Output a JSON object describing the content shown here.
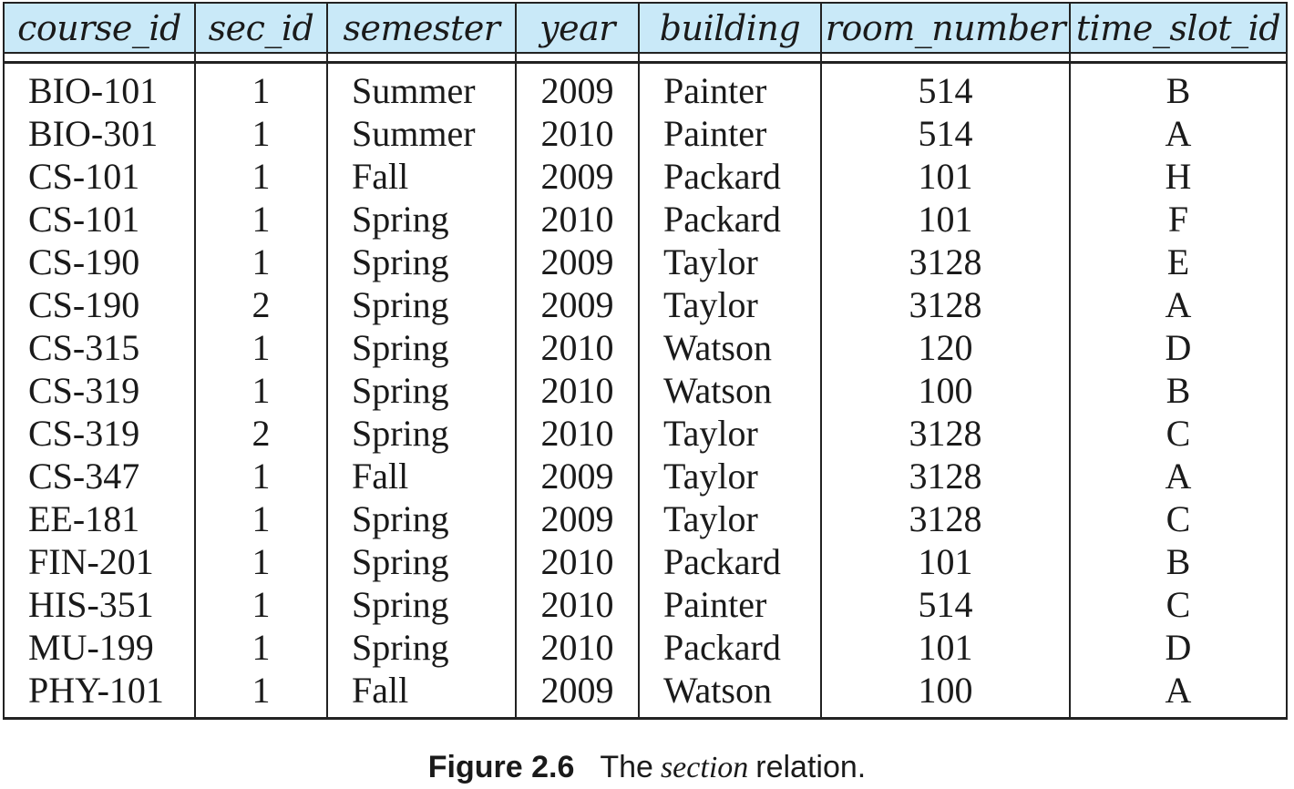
{
  "table": {
    "columns": [
      "course_id",
      "sec_id",
      "semester",
      "year",
      "building",
      "room_number",
      "time_slot_id"
    ],
    "rows": [
      [
        "BIO-101",
        "1",
        "Summer",
        "2009",
        "Painter",
        "514",
        "B"
      ],
      [
        "BIO-301",
        "1",
        "Summer",
        "2010",
        "Painter",
        "514",
        "A"
      ],
      [
        "CS-101",
        "1",
        "Fall",
        "2009",
        "Packard",
        "101",
        "H"
      ],
      [
        "CS-101",
        "1",
        "Spring",
        "2010",
        "Packard",
        "101",
        "F"
      ],
      [
        "CS-190",
        "1",
        "Spring",
        "2009",
        "Taylor",
        "3128",
        "E"
      ],
      [
        "CS-190",
        "2",
        "Spring",
        "2009",
        "Taylor",
        "3128",
        "A"
      ],
      [
        "CS-315",
        "1",
        "Spring",
        "2010",
        "Watson",
        "120",
        "D"
      ],
      [
        "CS-319",
        "1",
        "Spring",
        "2010",
        "Watson",
        "100",
        "B"
      ],
      [
        "CS-319",
        "2",
        "Spring",
        "2010",
        "Taylor",
        "3128",
        "C"
      ],
      [
        "CS-347",
        "1",
        "Fall",
        "2009",
        "Taylor",
        "3128",
        "A"
      ],
      [
        "EE-181",
        "1",
        "Spring",
        "2009",
        "Taylor",
        "3128",
        "C"
      ],
      [
        "FIN-201",
        "1",
        "Spring",
        "2010",
        "Packard",
        "101",
        "B"
      ],
      [
        "HIS-351",
        "1",
        "Spring",
        "2010",
        "Painter",
        "514",
        "C"
      ],
      [
        "MU-199",
        "1",
        "Spring",
        "2010",
        "Packard",
        "101",
        "D"
      ],
      [
        "PHY-101",
        "1",
        "Fall",
        "2009",
        "Watson",
        "100",
        "A"
      ]
    ]
  },
  "caption": {
    "number": "Figure 2.6",
    "prefix": "The",
    "italic_word": "section",
    "suffix": "relation."
  },
  "colors": {
    "header_background": "#c9e9f8",
    "border": "#222222",
    "text": "#1a1a1a"
  }
}
